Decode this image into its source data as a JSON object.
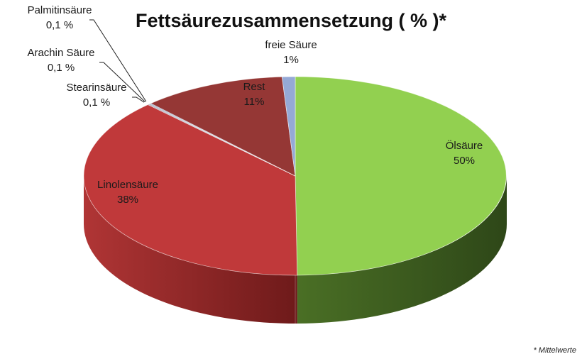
{
  "chart_data": {
    "type": "pie",
    "title": "Fettsäurezusammensetzung ( % )*",
    "footnote": "* Mittelwerte",
    "slices": [
      {
        "name": "Ölsäure",
        "value": 50,
        "label": "50%",
        "color": "#92d050"
      },
      {
        "name": "Linolensäure",
        "value": 38,
        "label": "38%",
        "color": "#c0393a"
      },
      {
        "name": "Stearinsäure",
        "value": 0.1,
        "label": "0,1 %",
        "color": "#7f6a8a"
      },
      {
        "name": "Arachin Säure",
        "value": 0.1,
        "label": "0,1 %",
        "color": "#8c8c8c"
      },
      {
        "name": "Palmitinsäure",
        "value": 0.1,
        "label": "0,1 %",
        "color": "#4f81bd"
      },
      {
        "name": "Rest",
        "value": 11,
        "label": "11%",
        "color": "#953735"
      },
      {
        "name": "freie Säure",
        "value": 1,
        "label": "1%",
        "color": "#95a9d6"
      }
    ]
  }
}
